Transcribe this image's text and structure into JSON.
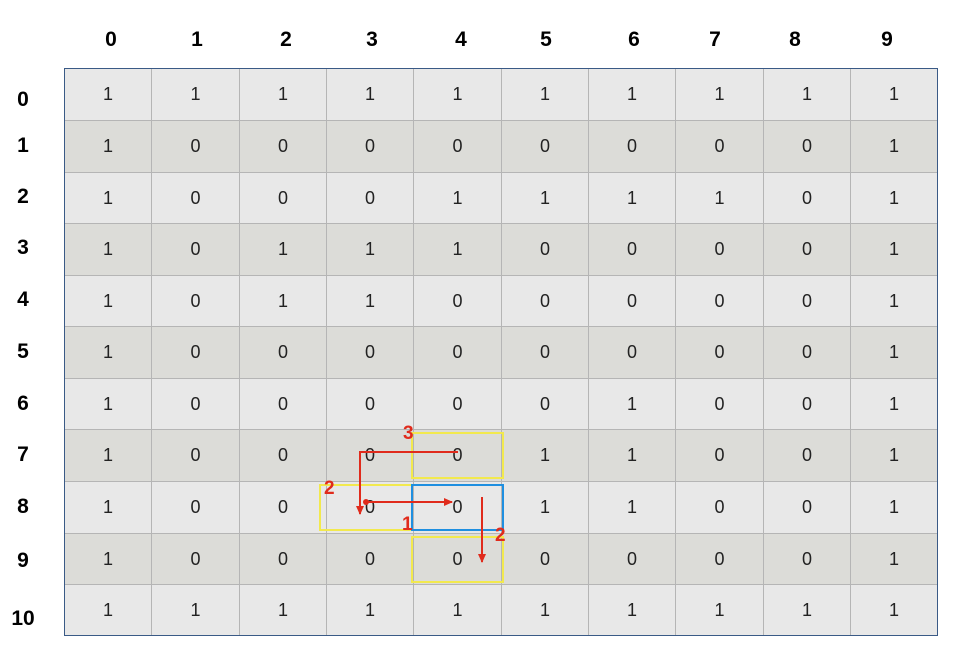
{
  "column_headers": [
    "0",
    "1",
    "2",
    "3",
    "4",
    "5",
    "6",
    "7",
    "8",
    "9"
  ],
  "row_headers": [
    "0",
    "1",
    "2",
    "3",
    "4",
    "5",
    "6",
    "7",
    "8",
    "9",
    "10"
  ],
  "grid": [
    [
      "1",
      "1",
      "1",
      "1",
      "1",
      "1",
      "1",
      "1",
      "1",
      "1"
    ],
    [
      "1",
      "0",
      "0",
      "0",
      "0",
      "0",
      "0",
      "0",
      "0",
      "1"
    ],
    [
      "1",
      "0",
      "0",
      "0",
      "1",
      "1",
      "1",
      "1",
      "0",
      "1"
    ],
    [
      "1",
      "0",
      "1",
      "1",
      "1",
      "0",
      "0",
      "0",
      "0",
      "1"
    ],
    [
      "1",
      "0",
      "1",
      "1",
      "0",
      "0",
      "0",
      "0",
      "0",
      "1"
    ],
    [
      "1",
      "0",
      "0",
      "0",
      "0",
      "0",
      "0",
      "0",
      "0",
      "1"
    ],
    [
      "1",
      "0",
      "0",
      "0",
      "0",
      "0",
      "1",
      "0",
      "0",
      "1"
    ],
    [
      "1",
      "0",
      "0",
      "0",
      "0",
      "1",
      "1",
      "0",
      "0",
      "1"
    ],
    [
      "1",
      "0",
      "0",
      "0",
      "0",
      "1",
      "1",
      "0",
      "0",
      "1"
    ],
    [
      "1",
      "0",
      "0",
      "0",
      "0",
      "0",
      "0",
      "0",
      "0",
      "1"
    ],
    [
      "1",
      "1",
      "1",
      "1",
      "1",
      "1",
      "1",
      "1",
      "1",
      "1"
    ]
  ],
  "colors": {
    "row_light": "#e8e8e8",
    "row_dark": "#dcdcd8",
    "grid_border": "#3a5a86",
    "arrow": "#e02b1c",
    "highlight_start": "#1f8fe0",
    "highlight_visited": "#f2e94e"
  },
  "highlights": [
    {
      "row": 8,
      "col": 4,
      "kind": "start"
    },
    {
      "row": 7,
      "col": 4,
      "kind": "visited"
    },
    {
      "row": 8,
      "col": 3,
      "kind": "visited"
    },
    {
      "row": 9,
      "col": 4,
      "kind": "visited"
    }
  ],
  "step_labels": [
    {
      "id": "label-step-1",
      "text": "1"
    },
    {
      "id": "label-step-2-left",
      "text": "2"
    },
    {
      "id": "label-step-2-down",
      "text": "2"
    },
    {
      "id": "label-step-3",
      "text": "3"
    }
  ]
}
